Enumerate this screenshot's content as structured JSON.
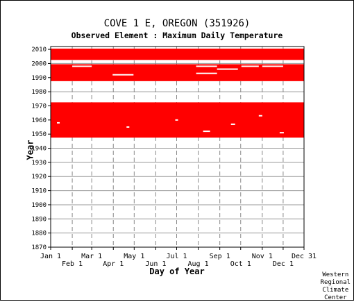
{
  "chart_data": {
    "type": "heatmap",
    "title": "COVE 1 E, OREGON   (351926)",
    "subtitle": "Observed Element : Maximum Daily Temperature",
    "xlabel": "Day of Year",
    "ylabel": "Year",
    "grid": true,
    "color_observed": "#ff0000",
    "x_ticks_top": [
      "Jan 1",
      "Mar 1",
      "May 1",
      "Jul 1",
      "Sep 1",
      "Nov 1",
      "Dec 31"
    ],
    "x_ticks_bottom": [
      "Feb 1",
      "Apr 1",
      "Jun 1",
      "Aug 1",
      "Oct 1",
      "Dec 1"
    ],
    "x_tick_days": [
      1,
      32,
      60,
      91,
      121,
      152,
      182,
      213,
      244,
      274,
      305,
      335,
      365
    ],
    "xlim": [
      1,
      365
    ],
    "ylim": [
      1870,
      2012
    ],
    "y_ticks": [
      1870,
      1880,
      1890,
      1900,
      1910,
      1920,
      1930,
      1940,
      1950,
      1960,
      1970,
      1980,
      1990,
      2000,
      2010
    ],
    "observed_year_ranges": [
      {
        "start": 1948,
        "end": 1972
      },
      {
        "start": 1988,
        "end": 1999
      },
      {
        "start": 2003,
        "end": 2010
      }
    ],
    "missing_segments": [
      {
        "year": 1998,
        "day_start": 32,
        "day_end": 60
      },
      {
        "year": 1992,
        "day_start": 90,
        "day_end": 120
      },
      {
        "year": 1998,
        "day_start": 210,
        "day_end": 240
      },
      {
        "year": 1993,
        "day_start": 210,
        "day_end": 240
      },
      {
        "year": 1996,
        "day_start": 240,
        "day_end": 270
      },
      {
        "year": 1998,
        "day_start": 275,
        "day_end": 300
      },
      {
        "year": 1998,
        "day_start": 305,
        "day_end": 335
      },
      {
        "year": 1958,
        "day_start": 10,
        "day_end": 14
      },
      {
        "year": 1955,
        "day_start": 110,
        "day_end": 114
      },
      {
        "year": 1952,
        "day_start": 220,
        "day_end": 230
      },
      {
        "year": 1957,
        "day_start": 260,
        "day_end": 266
      },
      {
        "year": 1963,
        "day_start": 300,
        "day_end": 305
      },
      {
        "year": 1951,
        "day_start": 330,
        "day_end": 336
      },
      {
        "year": 1960,
        "day_start": 180,
        "day_end": 184
      }
    ]
  },
  "credit": [
    "Western",
    "Regional",
    "Climate",
    "Center"
  ]
}
